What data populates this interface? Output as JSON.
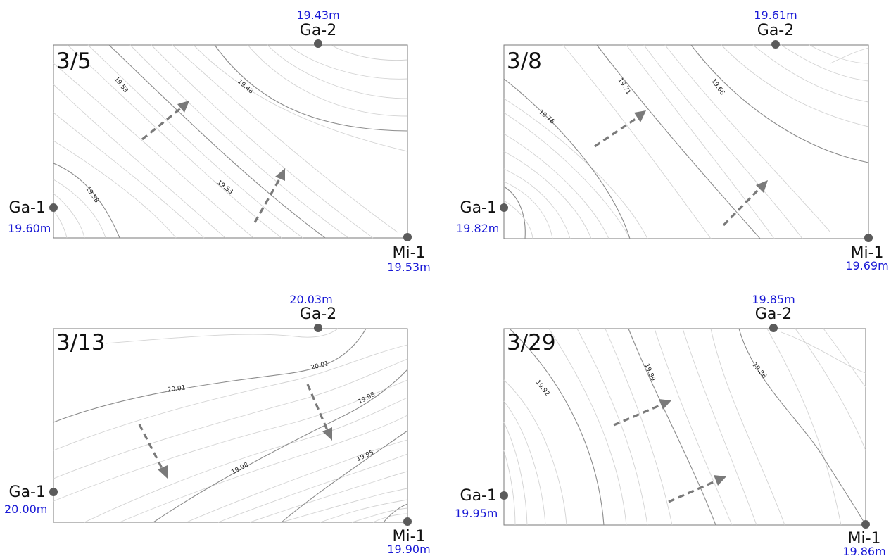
{
  "panels": [
    {
      "date": "3/5",
      "wells": {
        "ga1": {
          "name": "Ga-1",
          "level": "19.60m"
        },
        "ga2": {
          "name": "Ga-2",
          "level": "19.43m"
        },
        "mi1": {
          "name": "Mi-1",
          "level": "19.53m"
        }
      },
      "contour_labels": [
        "19.53",
        "19.48",
        "19.58",
        "19.53"
      ]
    },
    {
      "date": "3/8",
      "wells": {
        "ga1": {
          "name": "Ga-1",
          "level": "19.82m"
        },
        "ga2": {
          "name": "Ga-2",
          "level": "19.61m"
        },
        "mi1": {
          "name": "Mi-1",
          "level": "19.69m"
        }
      },
      "contour_labels": [
        "19.71",
        "19.66",
        "19.76"
      ]
    },
    {
      "date": "3/13",
      "wells": {
        "ga1": {
          "name": "Ga-1",
          "level": "20.00m"
        },
        "ga2": {
          "name": "Ga-2",
          "level": "20.03m"
        },
        "mi1": {
          "name": "Mi-1",
          "level": "19.90m"
        }
      },
      "contour_labels": [
        "20.01",
        "20.01",
        "19.98",
        "19.98",
        "19.95"
      ]
    },
    {
      "date": "3/29",
      "wells": {
        "ga1": {
          "name": "Ga-1",
          "level": "19.95m"
        },
        "ga2": {
          "name": "Ga-2",
          "level": "19.85m"
        },
        "mi1": {
          "name": "Mi-1",
          "level": "19.86m"
        }
      },
      "contour_labels": [
        "19.92",
        "19.89",
        "19.86"
      ]
    }
  ]
}
